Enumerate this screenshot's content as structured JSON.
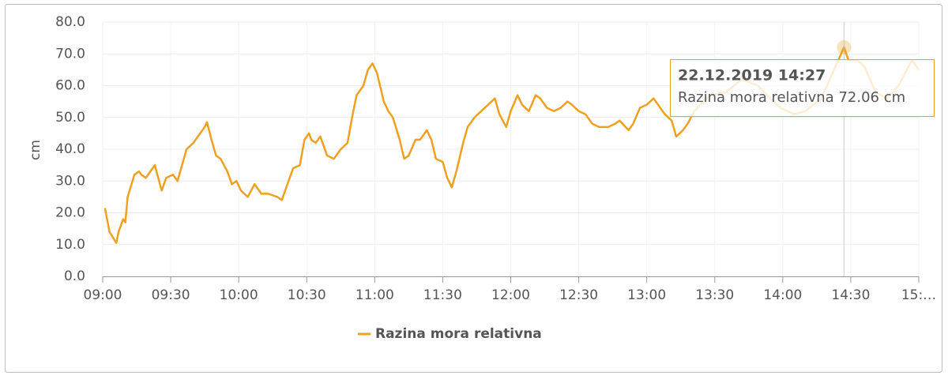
{
  "chart_data": {
    "type": "line",
    "y_label": "cm",
    "x": [
      "09:01",
      "09:03",
      "09:06",
      "09:07",
      "09:09",
      "09:10",
      "09:11",
      "09:14",
      "09:16",
      "09:17",
      "09:19",
      "09:23",
      "09:26",
      "09:28",
      "09:31",
      "09:33",
      "09:35",
      "09:37",
      "09:40",
      "09:42",
      "09:45",
      "09:46",
      "09:48",
      "09:50",
      "09:52",
      "09:55",
      "09:57",
      "09:59",
      "10:01",
      "10:04",
      "10:07",
      "10:10",
      "10:13",
      "10:17",
      "10:19",
      "10:22",
      "10:24",
      "10:27",
      "10:29",
      "10:31",
      "10:32",
      "10:34",
      "10:36",
      "10:39",
      "10:42",
      "10:45",
      "10:48",
      "10:50",
      "10:52",
      "10:55",
      "10:57",
      "10:59",
      "11:01",
      "11:04",
      "11:06",
      "11:08",
      "11:11",
      "11:13",
      "11:15",
      "11:18",
      "11:20",
      "11:23",
      "11:25",
      "11:27",
      "11:30",
      "11:32",
      "11:34",
      "11:36",
      "11:39",
      "11:41",
      "11:44",
      "11:47",
      "11:50",
      "11:53",
      "11:55",
      "11:58",
      "12:00",
      "12:03",
      "12:05",
      "12:08",
      "12:11",
      "12:13",
      "12:16",
      "12:19",
      "12:22",
      "12:25",
      "12:27",
      "12:30",
      "12:33",
      "12:36",
      "12:39",
      "12:43",
      "12:46",
      "12:48",
      "12:52",
      "12:54",
      "12:57",
      "13:00",
      "13:03",
      "13:06",
      "13:08",
      "13:11",
      "13:13",
      "13:16",
      "13:18",
      "13:21",
      "13:25",
      "13:28",
      "13:35",
      "13:42",
      "13:49",
      "13:56",
      "13:59",
      "14:05",
      "14:10",
      "14:17",
      "14:22",
      "14:27",
      "14:29",
      "14:33",
      "14:36",
      "14:41",
      "14:46",
      "14:51",
      "14:57",
      "15:00"
    ],
    "series": [
      {
        "name": "Razina mora relativna",
        "color": "#f0a020",
        "values": [
          21.5,
          14,
          10.5,
          14,
          18,
          17,
          25,
          32,
          33,
          32,
          31,
          35,
          27,
          31,
          32,
          30,
          35,
          40,
          42,
          44,
          47,
          48.5,
          43,
          38,
          37,
          33,
          29,
          30,
          27,
          25,
          29,
          26,
          26,
          25,
          24,
          30,
          34,
          35,
          43,
          45,
          43,
          42,
          44,
          38,
          37,
          40,
          42,
          50,
          57,
          60,
          65,
          67,
          64,
          55,
          52,
          50,
          43,
          37,
          38,
          43,
          43,
          46,
          43,
          37,
          36,
          31,
          28,
          33,
          42,
          47,
          50,
          52,
          54,
          56,
          51,
          47,
          52,
          57,
          54,
          52,
          57,
          56,
          53,
          52,
          53,
          55,
          54,
          52,
          51,
          48,
          47,
          47,
          48,
          49,
          46,
          48,
          53,
          54,
          56,
          53,
          51,
          49,
          44,
          46,
          48,
          52,
          55,
          57,
          58,
          62,
          60,
          55,
          53,
          51,
          52,
          56,
          64,
          72.06,
          68,
          68,
          66,
          58,
          56,
          60,
          68,
          65
        ]
      }
    ],
    "xlim": [
      "09:00",
      "15:00"
    ],
    "xticks": [
      "09:00",
      "09:30",
      "10:00",
      "10:30",
      "11:00",
      "11:30",
      "12:00",
      "12:30",
      "13:00",
      "13:30",
      "14:00",
      "14:30",
      {
        "value": "15:00",
        "label": "15:…"
      }
    ],
    "ylim": [
      0,
      80
    ],
    "yticks": [
      {
        "value": 0,
        "label": "0.0"
      },
      {
        "value": 10,
        "label": "10.0"
      },
      {
        "value": 20,
        "label": "20.0"
      },
      {
        "value": 30,
        "label": "30.0"
      },
      {
        "value": 40,
        "label": "40.0"
      },
      {
        "value": 50,
        "label": "50.0"
      },
      {
        "value": 60,
        "label": "60.0"
      },
      {
        "value": 70,
        "label": "70.0"
      },
      {
        "value": 80,
        "label": "80.0"
      }
    ],
    "grid": true,
    "legend": "bottom",
    "tooltip": {
      "x": "22.12.2019 14:27",
      "value_label": "72.06 cm"
    }
  }
}
